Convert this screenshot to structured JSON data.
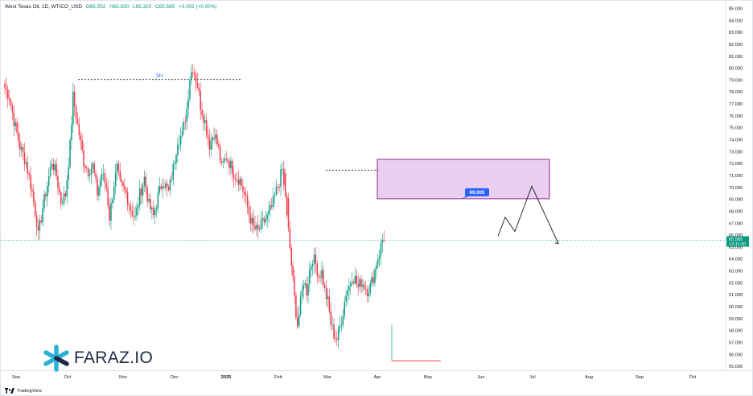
{
  "header": {
    "title": "West Texas Oil, 1D, WTICO_USD",
    "open": "O65.552",
    "high": "H65.830",
    "low": "L65.320",
    "close": "C65.565",
    "change": "+0.002 (+0.00%)"
  },
  "colors": {
    "up": "#089981",
    "down": "#f23645",
    "zone_fill": "#e6c7ee",
    "zone_border": "#8e2a8e",
    "label_bg": "#2962ff",
    "price_line": "#089981"
  },
  "chart_data": {
    "type": "candlestick",
    "symbol": "WTICO_USD",
    "timeframe": "1D",
    "ylim": [
      54.6,
      85.6
    ],
    "y_ticks": [
      "55.000",
      "56.000",
      "57.000",
      "58.000",
      "59.000",
      "60.000",
      "61.000",
      "62.000",
      "63.000",
      "64.000",
      "65.000",
      "66.000",
      "67.000",
      "68.000",
      "69.000",
      "70.000",
      "71.000",
      "72.000",
      "73.000",
      "74.000",
      "75.000",
      "76.000",
      "77.000",
      "78.000",
      "79.000",
      "80.000",
      "81.000",
      "82.000",
      "83.000",
      "84.000",
      "85.000"
    ],
    "x_ticks": [
      {
        "label": "Sep",
        "bold": false
      },
      {
        "label": "Oct",
        "bold": false
      },
      {
        "label": "Nov",
        "bold": false
      },
      {
        "label": "Dec",
        "bold": false
      },
      {
        "label": "2025",
        "bold": true
      },
      {
        "label": "Feb",
        "bold": false
      },
      {
        "label": "Mar",
        "bold": false
      },
      {
        "label": "Apr",
        "bold": false
      },
      {
        "label": "May",
        "bold": false
      },
      {
        "label": "Jun",
        "bold": false
      },
      {
        "label": "Jul",
        "bold": false
      },
      {
        "label": "Aug",
        "bold": false
      },
      {
        "label": "Sep",
        "bold": false
      },
      {
        "label": "Oct",
        "bold": false
      }
    ],
    "waypoints": [
      [
        0,
        78.4
      ],
      [
        3,
        77.6
      ],
      [
        6,
        75.6
      ],
      [
        10,
        73.4
      ],
      [
        14,
        72.1
      ],
      [
        18,
        69.6
      ],
      [
        21,
        67.2
      ],
      [
        22,
        65.9
      ],
      [
        25,
        68.3
      ],
      [
        28,
        70.2
      ],
      [
        31,
        72.2
      ],
      [
        34,
        71.0
      ],
      [
        37,
        68.8
      ],
      [
        40,
        69.4
      ],
      [
        43,
        73.5
      ],
      [
        45,
        77.6
      ],
      [
        48,
        75.2
      ],
      [
        52,
        72.2
      ],
      [
        55,
        71.4
      ],
      [
        58,
        71.8
      ],
      [
        61,
        69.5
      ],
      [
        64,
        71.2
      ],
      [
        67,
        70.0
      ],
      [
        69,
        67.5
      ],
      [
        72,
        70.3
      ],
      [
        74,
        71.6
      ],
      [
        76,
        70.2
      ],
      [
        80,
        69.5
      ],
      [
        83,
        68.2
      ],
      [
        86,
        67.4
      ],
      [
        89,
        69.4
      ],
      [
        92,
        70.8
      ],
      [
        95,
        68.5
      ],
      [
        98,
        67.6
      ],
      [
        101,
        69.2
      ],
      [
        104,
        70.6
      ],
      [
        108,
        69.6
      ],
      [
        111,
        71.6
      ],
      [
        114,
        74.0
      ],
      [
        117,
        74.4
      ],
      [
        120,
        76.6
      ],
      [
        122,
        79.2
      ],
      [
        124,
        80.1
      ],
      [
        127,
        78.6
      ],
      [
        129,
        76.9
      ],
      [
        132,
        75.5
      ],
      [
        135,
        73.6
      ],
      [
        138,
        74.6
      ],
      [
        141,
        73.2
      ],
      [
        143,
        71.6
      ],
      [
        146,
        72.6
      ],
      [
        149,
        71.8
      ],
      [
        152,
        71.0
      ],
      [
        155,
        70.6
      ],
      [
        158,
        69.4
      ],
      [
        161,
        67.8
      ],
      [
        164,
        66.6
      ],
      [
        167,
        66.3
      ],
      [
        170,
        67.0
      ],
      [
        173,
        67.5
      ],
      [
        176,
        68.3
      ],
      [
        179,
        69.7
      ],
      [
        181,
        70.5
      ],
      [
        183,
        71.5
      ],
      [
        185,
        68.5
      ],
      [
        187,
        66.3
      ],
      [
        189,
        63.5
      ],
      [
        191,
        60.7
      ],
      [
        193,
        58.5
      ],
      [
        195,
        60.3
      ],
      [
        197,
        62.2
      ],
      [
        199,
        61.3
      ],
      [
        201,
        63.1
      ],
      [
        203,
        64.1
      ],
      [
        205,
        63.6
      ],
      [
        207,
        62.6
      ],
      [
        209,
        62.9
      ],
      [
        211,
        61.3
      ],
      [
        213,
        60.4
      ],
      [
        215,
        58.6
      ],
      [
        217,
        57.7
      ],
      [
        219,
        57.3
      ],
      [
        221,
        58.3
      ],
      [
        223,
        59.6
      ],
      [
        225,
        61.2
      ],
      [
        227,
        61.7
      ],
      [
        229,
        62.6
      ],
      [
        231,
        62.3
      ],
      [
        233,
        61.6
      ],
      [
        235,
        62.1
      ],
      [
        237,
        61.8
      ],
      [
        239,
        61.4
      ],
      [
        241,
        61.7
      ],
      [
        243,
        62.5
      ],
      [
        245,
        63.7
      ],
      [
        247,
        64.6
      ],
      [
        249,
        65.6
      ],
      [
        250,
        65.57
      ]
    ],
    "annotations": {
      "swing_high_label": "SH",
      "swing_high_level": 79.05,
      "resistance_level": 71.45,
      "supply_zone": {
        "top": 72.35,
        "bottom": 69.05
      },
      "target_label": "69.005",
      "current_price": "65.565",
      "countdown": "12:11:30",
      "low_level": 55.45
    }
  },
  "logo": {
    "name": "FARAZ.IO"
  },
  "footer": {
    "brand": "TradingView"
  }
}
